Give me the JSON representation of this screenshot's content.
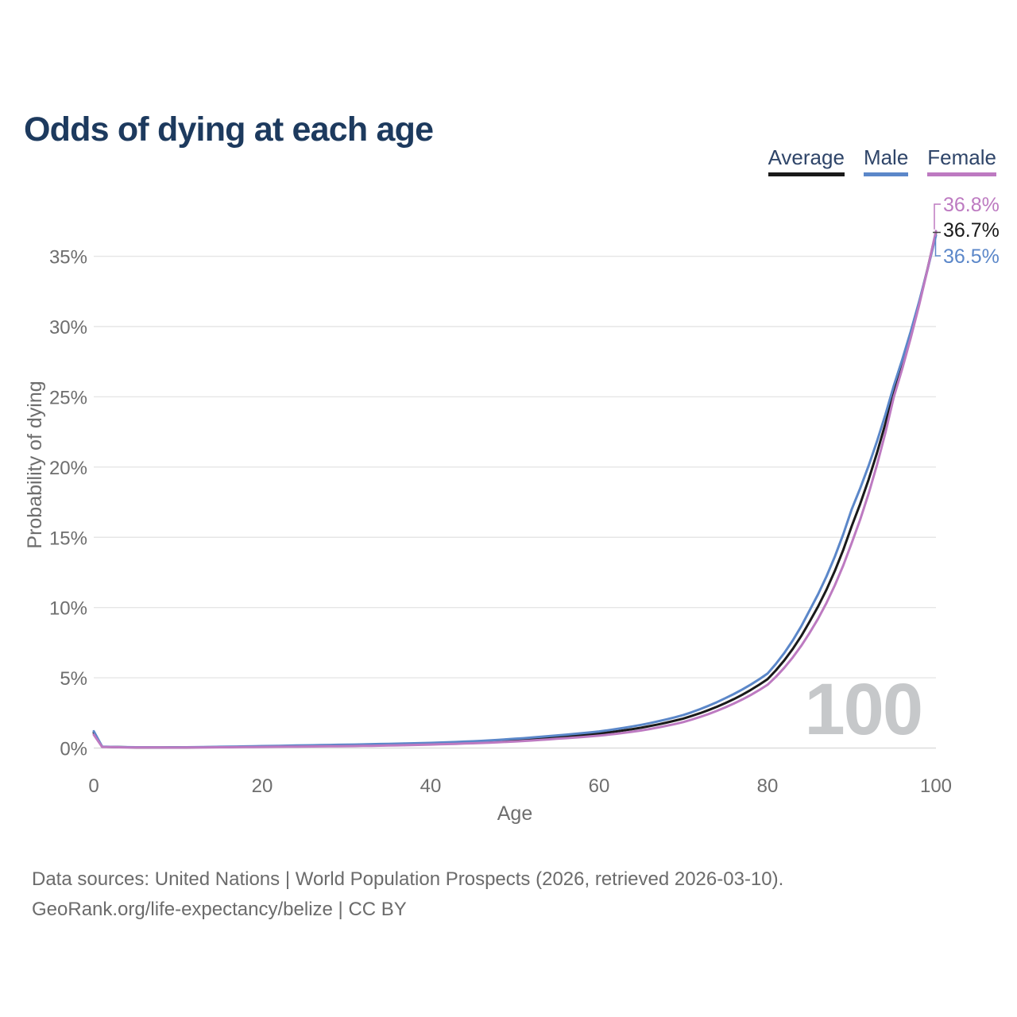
{
  "header": {
    "title": "Odds of dying at each age"
  },
  "legend": [
    {
      "label": "Average",
      "color": "#1a1a1a"
    },
    {
      "label": "Male",
      "color": "#5b87c9"
    },
    {
      "label": "Female",
      "color": "#bd7ac1"
    }
  ],
  "footer": {
    "line1": "Data sources: United Nations | World Population Prospects (2026, retrieved 2026-03-10).",
    "line2": "GeoRank.org/life-expectancy/belize | CC BY"
  },
  "chart_data": {
    "type": "line",
    "title": "Odds of dying at each age",
    "xlabel": "Age",
    "ylabel": "Probability of dying",
    "x_ticks": [
      0,
      20,
      40,
      60,
      80,
      100
    ],
    "y_ticks_pct": [
      0,
      5,
      10,
      15,
      20,
      25,
      30,
      35
    ],
    "xlim": [
      0,
      100
    ],
    "ylim_pct": [
      0,
      37
    ],
    "grid": "horizontal",
    "legend_position": "top-right",
    "watermark": "100",
    "gridline_color": "#e6e6e6",
    "baseline_color": "#dcdcdc",
    "tick_label_color": "#6e6e6e",
    "watermark_color": "#c6c8ca",
    "series": [
      {
        "name": "Average",
        "color": "#1a1a1a",
        "end_label": "36.7%",
        "points": [
          [
            0,
            1.08
          ],
          [
            1,
            0.09
          ],
          [
            5,
            0.048
          ],
          [
            10,
            0.042
          ],
          [
            15,
            0.072
          ],
          [
            20,
            0.11
          ],
          [
            25,
            0.15
          ],
          [
            30,
            0.19
          ],
          [
            35,
            0.24
          ],
          [
            40,
            0.31
          ],
          [
            45,
            0.41
          ],
          [
            50,
            0.56
          ],
          [
            55,
            0.78
          ],
          [
            60,
            1.03
          ],
          [
            65,
            1.45
          ],
          [
            70,
            2.1
          ],
          [
            75,
            3.2
          ],
          [
            80,
            4.9
          ],
          [
            85,
            9.0
          ],
          [
            90,
            15.8
          ],
          [
            95,
            25.4
          ],
          [
            100,
            36.7
          ]
        ]
      },
      {
        "name": "Male",
        "color": "#5b87c9",
        "end_label": "36.5%",
        "points": [
          [
            0,
            1.2
          ],
          [
            1,
            0.1
          ],
          [
            5,
            0.055
          ],
          [
            10,
            0.05
          ],
          [
            15,
            0.09
          ],
          [
            20,
            0.14
          ],
          [
            25,
            0.19
          ],
          [
            30,
            0.24
          ],
          [
            35,
            0.3
          ],
          [
            40,
            0.37
          ],
          [
            45,
            0.48
          ],
          [
            50,
            0.66
          ],
          [
            55,
            0.9
          ],
          [
            60,
            1.18
          ],
          [
            65,
            1.65
          ],
          [
            70,
            2.35
          ],
          [
            75,
            3.55
          ],
          [
            80,
            5.3
          ],
          [
            85,
            9.8
          ],
          [
            90,
            17.0
          ],
          [
            95,
            25.8
          ],
          [
            100,
            36.5
          ]
        ]
      },
      {
        "name": "Female",
        "color": "#bd7ac1",
        "end_label": "36.8%",
        "points": [
          [
            0,
            0.95
          ],
          [
            1,
            0.08
          ],
          [
            5,
            0.04
          ],
          [
            10,
            0.035
          ],
          [
            15,
            0.055
          ],
          [
            20,
            0.08
          ],
          [
            25,
            0.105
          ],
          [
            30,
            0.135
          ],
          [
            35,
            0.18
          ],
          [
            40,
            0.25
          ],
          [
            45,
            0.34
          ],
          [
            50,
            0.47
          ],
          [
            55,
            0.66
          ],
          [
            60,
            0.88
          ],
          [
            65,
            1.25
          ],
          [
            70,
            1.85
          ],
          [
            75,
            2.9
          ],
          [
            80,
            4.5
          ],
          [
            85,
            8.2
          ],
          [
            90,
            14.6
          ],
          [
            95,
            25.0
          ],
          [
            100,
            36.8
          ]
        ]
      }
    ]
  }
}
